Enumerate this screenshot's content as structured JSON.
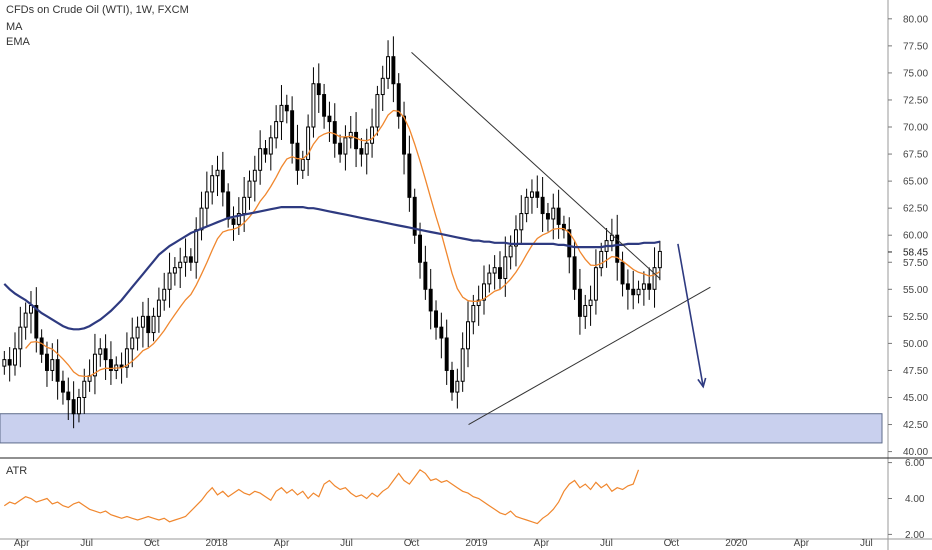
{
  "chart_data": {
    "type": "candlestick",
    "title": "CFDs on Crude Oil (WTI), 1W, FXCM",
    "legend_items": [
      "MA",
      "EMA"
    ],
    "indicator_label": "ATR",
    "last_price_label": "58.45",
    "y_ticks": [
      "80.00",
      "77.50",
      "75.00",
      "72.50",
      "70.00",
      "67.50",
      "65.00",
      "62.50",
      "60.00",
      "57.50",
      "55.00",
      "52.50",
      "50.00",
      "47.50",
      "45.00",
      "42.50",
      "40.00"
    ],
    "atr_ticks": [
      "6.00",
      "4.00",
      "2.00"
    ],
    "x_ticks": [
      {
        "label": "Apr",
        "date": "2017-04"
      },
      {
        "label": "Jul",
        "date": "2017-07"
      },
      {
        "label": "Oct",
        "date": "2017-10"
      },
      {
        "label": "2018",
        "date": "2018-01"
      },
      {
        "label": "Apr",
        "date": "2018-04"
      },
      {
        "label": "Jul",
        "date": "2018-07"
      },
      {
        "label": "Oct",
        "date": "2018-10"
      },
      {
        "label": "2019",
        "date": "2019-01"
      },
      {
        "label": "Apr",
        "date": "2019-04"
      },
      {
        "label": "Jul",
        "date": "2019-07"
      },
      {
        "label": "Oct",
        "date": "2019-10"
      },
      {
        "label": "2020",
        "date": "2020-01"
      },
      {
        "label": "Apr",
        "date": "2020-04"
      },
      {
        "label": "Jul",
        "date": "2020-07"
      }
    ],
    "x_start": "2017-03",
    "x_end": "2020-08",
    "y_range": [
      39.5,
      81
    ],
    "atr_range": [
      1.8,
      6.2
    ],
    "price_series_weekly_close": [
      48.5,
      48.0,
      49.5,
      51.5,
      52.8,
      53.5,
      50.5,
      49.0,
      47.5,
      48.5,
      46.5,
      45.5,
      44.8,
      43.5,
      45.0,
      46.5,
      47.0,
      49.0,
      49.5,
      48.5,
      47.5,
      48.0,
      47.8,
      49.5,
      50.5,
      51.5,
      52.5,
      51.0,
      52.5,
      54.0,
      55.0,
      56.5,
      57.0,
      57.5,
      58.0,
      57.5,
      60.5,
      62.5,
      64.0,
      65.5,
      66.0,
      64.0,
      61.5,
      61.0,
      62.0,
      63.5,
      65.0,
      66.0,
      68.0,
      67.5,
      69.0,
      70.5,
      72.0,
      71.5,
      68.5,
      66.0,
      67.0,
      70.0,
      74.0,
      73.0,
      71.0,
      70.5,
      68.5,
      67.5,
      69.0,
      69.5,
      68.0,
      67.5,
      68.5,
      70.0,
      73.0,
      74.5,
      76.5,
      74.0,
      71.0,
      67.5,
      63.5,
      60.0,
      57.5,
      55.0,
      53.0,
      51.5,
      50.5,
      47.5,
      45.5,
      46.5,
      49.5,
      52.0,
      53.5,
      54.0,
      55.5,
      56.5,
      57.0,
      56.0,
      58.0,
      59.0,
      60.5,
      62.0,
      63.5,
      64.0,
      63.5,
      62.0,
      61.5,
      62.5,
      61.0,
      60.5,
      58.0,
      55.0,
      52.5,
      53.5,
      54.0,
      57.0,
      58.5,
      59.5,
      60.0,
      57.5,
      55.5,
      55.0,
      54.5,
      55.0,
      55.5,
      55.0,
      57.0,
      58.5
    ],
    "ma_series": [
      55.5,
      55.0,
      54.6,
      54.3,
      54.0,
      53.6,
      53.2,
      52.8,
      52.5,
      52.2,
      51.9,
      51.6,
      51.4,
      51.3,
      51.3,
      51.4,
      51.6,
      51.9,
      52.2,
      52.6,
      53.0,
      53.5,
      54.0,
      54.6,
      55.2,
      55.8,
      56.4,
      57.0,
      57.6,
      58.2,
      58.6,
      59.0,
      59.3,
      59.6,
      59.9,
      60.2,
      60.4,
      60.6,
      60.8,
      61.0,
      61.2,
      61.4,
      61.6,
      61.7,
      61.8,
      61.9,
      62.0,
      62.1,
      62.2,
      62.3,
      62.4,
      62.5,
      62.6,
      62.6,
      62.6,
      62.6,
      62.6,
      62.5,
      62.5,
      62.4,
      62.3,
      62.2,
      62.1,
      62.0,
      61.9,
      61.8,
      61.7,
      61.6,
      61.5,
      61.4,
      61.3,
      61.2,
      61.1,
      61.0,
      60.9,
      60.8,
      60.7,
      60.6,
      60.5,
      60.4,
      60.3,
      60.2,
      60.1,
      60.0,
      59.9,
      59.8,
      59.7,
      59.6,
      59.5,
      59.5,
      59.4,
      59.4,
      59.3,
      59.3,
      59.3,
      59.2,
      59.2,
      59.2,
      59.2,
      59.2,
      59.2,
      59.2,
      59.2,
      59.2,
      59.1,
      59.1,
      59.0,
      58.9,
      58.9,
      58.9,
      58.9,
      58.9,
      58.9,
      59.0,
      59.0,
      59.1,
      59.1,
      59.2,
      59.2,
      59.2,
      59.3,
      59.3,
      59.3,
      59.4
    ],
    "trendline_upper": [
      {
        "date": "2018-10-01",
        "y": 76.9
      },
      {
        "date": "2019-09-15",
        "y": 56.0
      }
    ],
    "trendline_lower": [
      {
        "date": "2018-12-20",
        "y": 42.5
      },
      {
        "date": "2019-11-25",
        "y": 55.2
      }
    ],
    "projection_arrow": [
      {
        "date": "2019-10-10",
        "y": 59.2
      },
      {
        "date": "2019-11-15",
        "y": 46.0
      }
    ],
    "support_zone": [
      40.8,
      43.5
    ],
    "atr_series": [
      3.6,
      3.8,
      3.7,
      3.9,
      4.1,
      4.0,
      3.8,
      3.9,
      4.0,
      3.7,
      3.8,
      3.6,
      3.5,
      3.7,
      3.8,
      3.6,
      3.4,
      3.3,
      3.2,
      3.3,
      3.1,
      3.0,
      2.9,
      3.0,
      2.9,
      2.8,
      2.9,
      3.0,
      2.9,
      2.8,
      2.9,
      2.7,
      2.8,
      2.9,
      3.0,
      3.3,
      3.6,
      3.9,
      4.3,
      4.6,
      4.2,
      4.4,
      4.1,
      4.3,
      4.5,
      4.3,
      4.2,
      4.4,
      4.3,
      4.1,
      3.9,
      4.4,
      4.6,
      4.3,
      4.5,
      4.2,
      4.4,
      4.0,
      4.3,
      4.1,
      4.8,
      5.0,
      4.7,
      4.5,
      4.6,
      4.3,
      4.1,
      4.2,
      4.0,
      4.3,
      4.1,
      4.4,
      4.6,
      5.0,
      5.4,
      5.0,
      4.8,
      5.2,
      5.6,
      5.4,
      5.0,
      5.1,
      4.9,
      5.0,
      4.8,
      4.6,
      4.4,
      4.3,
      4.1,
      4.0,
      3.8,
      3.6,
      3.4,
      3.2,
      3.1,
      3.3,
      3.0,
      2.9,
      2.8,
      2.7,
      2.6,
      2.9,
      3.1,
      3.4,
      3.8,
      4.4,
      4.8,
      5.0,
      4.6,
      4.8,
      4.5,
      4.9,
      4.6,
      4.8,
      4.4,
      4.6,
      4.5,
      4.7,
      4.8,
      5.6
    ],
    "colors": {
      "candle": "#000000",
      "ma": "#2e3a80",
      "ema": "#f0872e",
      "atr": "#f0872e",
      "zone_fill": "#c9d0ee",
      "zone_stroke": "#5e6b8a",
      "trendline": "#333333",
      "arrow": "#2e3a80"
    }
  }
}
